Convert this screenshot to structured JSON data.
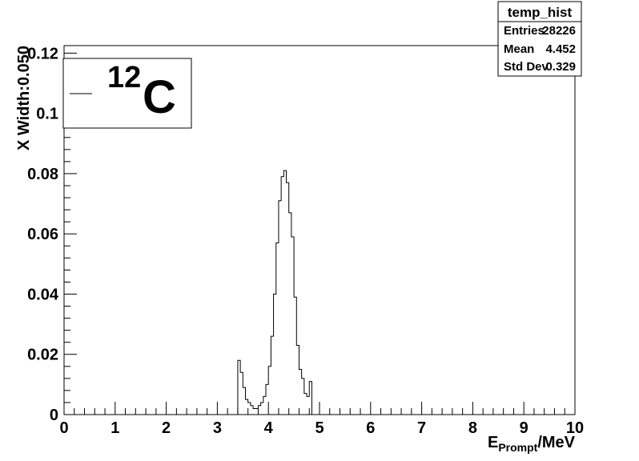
{
  "chart_data": {
    "type": "histogram",
    "title": "",
    "xlabel_main": "E",
    "xlabel_sub": "Prompt",
    "xlabel_unit": "/MeV",
    "ylabel": "X Width:0.050",
    "xlim": [
      0,
      10
    ],
    "ylim": [
      0,
      0.1225
    ],
    "bin_width": 0.05,
    "x_ticks": [
      "0",
      "1",
      "2",
      "3",
      "4",
      "5",
      "6",
      "7",
      "8",
      "9",
      "10"
    ],
    "y_ticks": [
      "0",
      "0.02",
      "0.04",
      "0.06",
      "0.08",
      "0.1",
      "0.12"
    ],
    "y_tick_values": [
      0,
      0.02,
      0.04,
      0.06,
      0.08,
      0.1,
      0.12
    ],
    "grid": false,
    "series": [
      {
        "bin_start": 3.4,
        "values": [
          0.018,
          0.014,
          0.009,
          0.005,
          0.004,
          0.003,
          0.002,
          0.002,
          0.003,
          0.004,
          0.006,
          0.01,
          0.016,
          0.026,
          0.04,
          0.057,
          0.071,
          0.079,
          0.081,
          0.077,
          0.067,
          0.059,
          0.039,
          0.023,
          0.015,
          0.012,
          0.007,
          0.006,
          0.011
        ]
      }
    ],
    "legend": {
      "position": "top-left",
      "entries": [
        {
          "mass_number": "12",
          "symbol": "C"
        }
      ]
    },
    "stats_box": {
      "title": "temp_hist",
      "rows": [
        {
          "label": "Entries",
          "value": "28226"
        },
        {
          "label": "Mean",
          "value": "4.452"
        },
        {
          "label": "Std Dev",
          "value": "0.329"
        }
      ]
    }
  }
}
